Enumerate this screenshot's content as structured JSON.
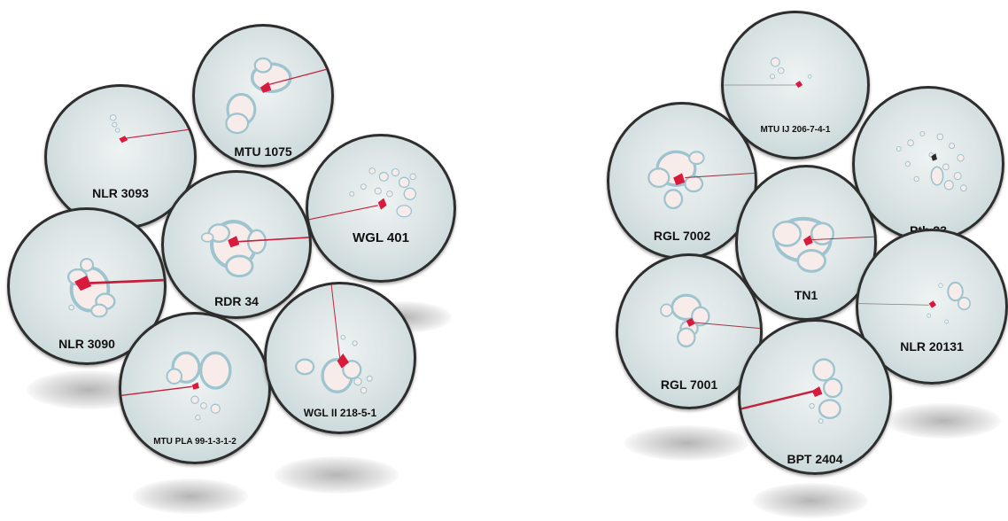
{
  "dishes_left": [
    {
      "id": "nlr-3093",
      "label": "NLR 3093"
    },
    {
      "id": "mtu-1075",
      "label": "MTU 1075"
    },
    {
      "id": "wgl-401",
      "label": "WGL 401"
    },
    {
      "id": "rdr-34",
      "label": "RDR 34"
    },
    {
      "id": "nlr-3090",
      "label": "NLR 3090"
    },
    {
      "id": "mtu-pla",
      "label": "MTU PLA 99-1-3-1-2"
    },
    {
      "id": "wgl-ii",
      "label": "WGL II 218-5-1"
    }
  ],
  "dishes_right": [
    {
      "id": "mtu-ij",
      "label": "MTU IJ 206-7-4-1"
    },
    {
      "id": "rgl-7002",
      "label": "RGL 7002"
    },
    {
      "id": "ptb-33",
      "label": "Ptb 33"
    },
    {
      "id": "tn1",
      "label": "TN1"
    },
    {
      "id": "nlr-20131",
      "label": "NLR 20131"
    },
    {
      "id": "rgl-7001",
      "label": "RGL 7001"
    },
    {
      "id": "bpt-2404",
      "label": "BPT 2404"
    }
  ],
  "colors": {
    "dish_rim": "#2e2e2e",
    "filter_paper": "#dde5e6",
    "feeding_spot": "#f7ecea",
    "stylet_marker": "#d81b3c",
    "blue_halo": "#9ec4cf"
  }
}
